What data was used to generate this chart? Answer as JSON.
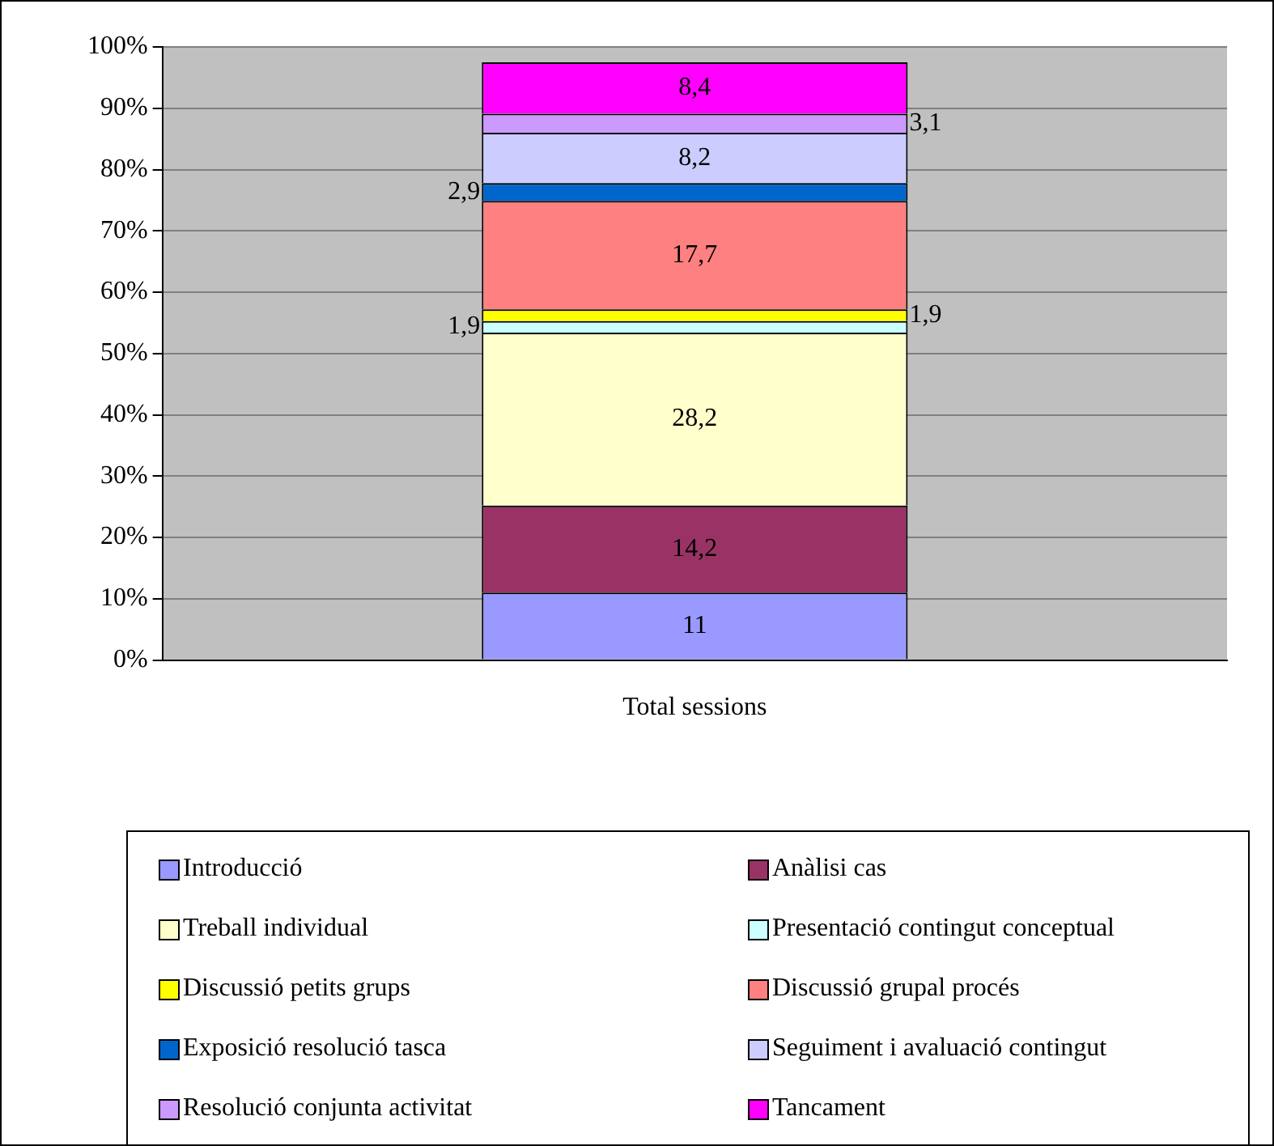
{
  "chart_data": {
    "type": "bar",
    "stacked": true,
    "categories": [
      "Total sessions"
    ],
    "series": [
      {
        "name": "Introducció",
        "color": "#9999ff",
        "values": [
          11
        ],
        "value_labels": [
          "11"
        ]
      },
      {
        "name": "Anàlisi cas",
        "color": "#993366",
        "values": [
          14.2
        ],
        "value_labels": [
          "14,2"
        ]
      },
      {
        "name": "Treball individual",
        "color": "#ffffcc",
        "values": [
          28.2
        ],
        "value_labels": [
          "28,2"
        ]
      },
      {
        "name": "Presentació contingut conceptual",
        "color": "#ccffff",
        "values": [
          1.9
        ],
        "value_labels": [
          "1,9"
        ]
      },
      {
        "name": "Discussió petits grups",
        "color": "#ffff00",
        "values": [
          1.9
        ],
        "value_labels": [
          "1,9"
        ]
      },
      {
        "name": "Discussió grupal procés",
        "color": "#ff8080",
        "values": [
          17.7
        ],
        "value_labels": [
          "17,7"
        ]
      },
      {
        "name": "Exposició resolució tasca",
        "color": "#0066cc",
        "values": [
          2.9
        ],
        "value_labels": [
          "2,9"
        ]
      },
      {
        "name": "Seguiment i avaluació contingut",
        "color": "#ccccff",
        "values": [
          8.2
        ],
        "value_labels": [
          "8,2"
        ]
      },
      {
        "name": "Resolució conjunta activitat",
        "color": "#cc99ff",
        "values": [
          3.1
        ],
        "value_labels": [
          "3,1"
        ]
      },
      {
        "name": "Tancament",
        "color": "#ff00ff",
        "values": [
          8.4
        ],
        "value_labels": [
          "8,4"
        ]
      }
    ],
    "ylim": [
      0,
      100
    ],
    "yticks": [
      {
        "value": 0,
        "label": "0%"
      },
      {
        "value": 10,
        "label": "10%"
      },
      {
        "value": 20,
        "label": "20%"
      },
      {
        "value": 30,
        "label": "30%"
      },
      {
        "value": 40,
        "label": "40%"
      },
      {
        "value": 50,
        "label": "50%"
      },
      {
        "value": 60,
        "label": "60%"
      },
      {
        "value": 70,
        "label": "70%"
      },
      {
        "value": 80,
        "label": "80%"
      },
      {
        "value": 90,
        "label": "90%"
      },
      {
        "value": 100,
        "label": "100%"
      }
    ],
    "grid": "y",
    "legend": "bottom"
  }
}
